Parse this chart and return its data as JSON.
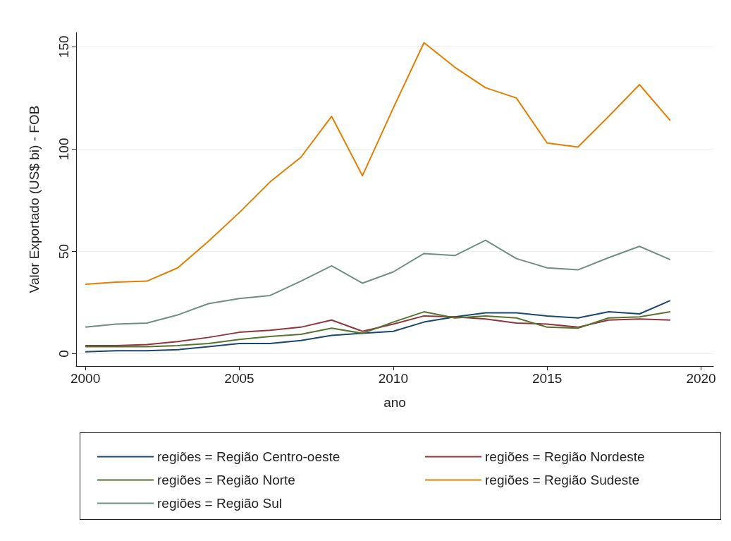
{
  "chart_data": {
    "type": "line",
    "xlabel": "ano",
    "ylabel": "Valor Exportado (US$ bi) - FOB",
    "x": [
      2000,
      2001,
      2002,
      2003,
      2004,
      2005,
      2006,
      2007,
      2008,
      2009,
      2010,
      2011,
      2012,
      2013,
      2014,
      2015,
      2016,
      2017,
      2018,
      2019
    ],
    "xlim": [
      1999.7,
      2020.4
    ],
    "xticks": [
      2000,
      2005,
      2010,
      2015,
      2020
    ],
    "ylim": [
      -6,
      157
    ],
    "yticks": [
      0,
      50,
      100,
      150
    ],
    "grid": "y",
    "legend": "bottom",
    "marker": "none",
    "line_style": "solid",
    "series": [
      {
        "name": "regiões = Região Centro-oeste",
        "color": "#1a476f",
        "values": [
          1,
          1.5,
          1.5,
          2,
          3.5,
          5,
          5,
          6.5,
          9,
          10,
          11,
          15.5,
          18,
          20,
          20,
          18.5,
          17.5,
          20.5,
          19.5,
          26
        ]
      },
      {
        "name": "regiões = Região Nordeste",
        "color": "#90353b",
        "values": [
          4,
          4,
          4.5,
          6,
          8,
          10.5,
          11.5,
          13,
          16.5,
          11,
          14.5,
          18.5,
          18,
          17,
          15,
          14.5,
          13,
          16.5,
          17,
          16.5
        ]
      },
      {
        "name": "regiões = Região Norte",
        "color": "#55752f",
        "values": [
          3.5,
          3.5,
          3.5,
          4,
          5,
          7,
          8.5,
          9.5,
          12.5,
          10,
          15.5,
          20.5,
          17.5,
          18.5,
          17.5,
          13,
          12.5,
          17.5,
          18,
          20.5
        ]
      },
      {
        "name": "regiões = Região Sudeste",
        "color": "#e37e00",
        "values": [
          34,
          35,
          35.5,
          42,
          55,
          69,
          84,
          96,
          116,
          87,
          120,
          152,
          140,
          130,
          125,
          103,
          101,
          116,
          131.5,
          114
        ]
      },
      {
        "name": "regiões = Região Sul",
        "color": "#6e8e84",
        "values": [
          13,
          14.5,
          15,
          19,
          24.5,
          27,
          28.5,
          35.5,
          43,
          34.5,
          40,
          49,
          48,
          55.5,
          46.5,
          42,
          41,
          47,
          52.5,
          46
        ]
      }
    ]
  }
}
